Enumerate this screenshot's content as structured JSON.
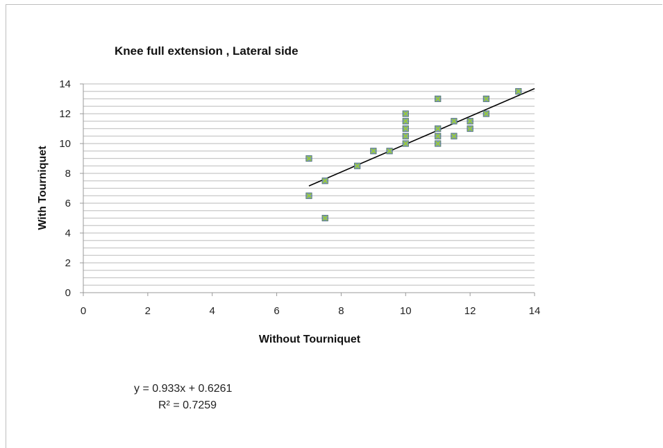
{
  "chart_data": {
    "type": "scatter",
    "title": "Knee full extension , Lateral side",
    "xlabel": "Without Tourniquet",
    "ylabel": "With Tourniquet",
    "xlim": [
      0,
      14
    ],
    "ylim": [
      0,
      14
    ],
    "xticks": [
      "0",
      "2",
      "4",
      "6",
      "8",
      "10",
      "12",
      "14"
    ],
    "yticks": [
      "0",
      "2",
      "4",
      "6",
      "8",
      "10",
      "12",
      "14"
    ],
    "grid": "horizontal",
    "points": [
      {
        "x": 7,
        "y": 9
      },
      {
        "x": 7,
        "y": 6.5
      },
      {
        "x": 7.5,
        "y": 7.5
      },
      {
        "x": 7.5,
        "y": 5
      },
      {
        "x": 8.5,
        "y": 8.5
      },
      {
        "x": 9,
        "y": 9.5
      },
      {
        "x": 9.5,
        "y": 9.5
      },
      {
        "x": 10,
        "y": 12
      },
      {
        "x": 10,
        "y": 11.5
      },
      {
        "x": 10,
        "y": 11
      },
      {
        "x": 10,
        "y": 10.5
      },
      {
        "x": 10,
        "y": 10
      },
      {
        "x": 11,
        "y": 13
      },
      {
        "x": 11,
        "y": 11
      },
      {
        "x": 11,
        "y": 10.5
      },
      {
        "x": 11,
        "y": 10
      },
      {
        "x": 11.5,
        "y": 11.5
      },
      {
        "x": 11.5,
        "y": 10.5
      },
      {
        "x": 12,
        "y": 11.5
      },
      {
        "x": 12,
        "y": 11
      },
      {
        "x": 12.5,
        "y": 13
      },
      {
        "x": 12.5,
        "y": 12
      },
      {
        "x": 13.5,
        "y": 13.5
      }
    ],
    "trendline": {
      "slope": 0.933,
      "intercept": 0.6261,
      "x_range": [
        7,
        14
      ]
    },
    "equation": "y = 0.933x + 0.6261",
    "r_squared": "R² = 0.7259",
    "marker_color": "#7f9fb0",
    "marker_cross_color": "#9acd32",
    "trendline_color": "#000000",
    "grid_color": "#c8c8c8"
  }
}
